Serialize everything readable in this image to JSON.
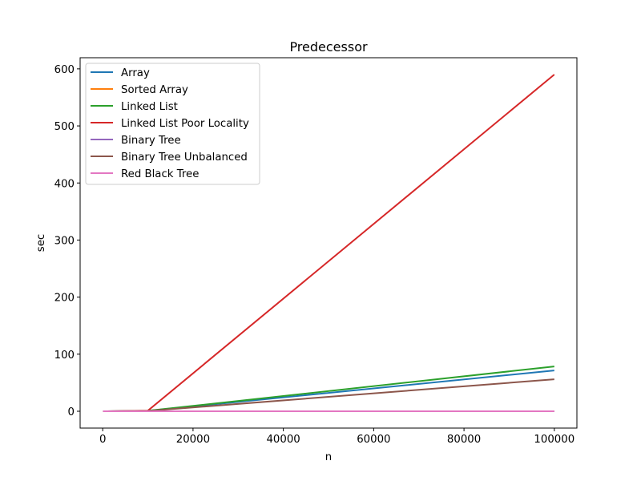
{
  "chart_data": {
    "type": "line",
    "title": "Predecessor",
    "xlabel": "n",
    "ylabel": "sec",
    "x": [
      100,
      1000,
      10000,
      100000
    ],
    "xlim": [
      -5000,
      105000
    ],
    "ylim": [
      -29.5,
      619.5
    ],
    "xticks": [
      0,
      20000,
      40000,
      60000,
      80000,
      100000
    ],
    "xtick_labels": [
      "0",
      "20000",
      "40000",
      "60000",
      "80000",
      "100000"
    ],
    "yticks": [
      0,
      100,
      200,
      300,
      400,
      500,
      600
    ],
    "ytick_labels": [
      "0",
      "100",
      "200",
      "300",
      "400",
      "500",
      "600"
    ],
    "grid": false,
    "legend_position": "upper left",
    "series": [
      {
        "name": "Array",
        "color": "#1f77b4",
        "values": [
          0.0,
          0.01,
          0.7,
          71.5
        ]
      },
      {
        "name": "Sorted Array",
        "color": "#ff7f0e",
        "values": [
          0.0,
          0.0,
          0.0,
          0.01
        ]
      },
      {
        "name": "Linked List",
        "color": "#2ca02c",
        "values": [
          0.0,
          0.01,
          0.8,
          78.5
        ]
      },
      {
        "name": "Linked List Poor Locality",
        "color": "#d62728",
        "values": [
          0.0,
          0.01,
          1.0,
          590.0
        ]
      },
      {
        "name": "Binary Tree",
        "color": "#9467bd",
        "values": [
          0.0,
          0.0,
          0.0,
          0.02
        ]
      },
      {
        "name": "Binary Tree Unbalanced",
        "color": "#8c564b",
        "values": [
          0.0,
          0.01,
          0.55,
          56.0
        ]
      },
      {
        "name": "Red Black Tree",
        "color": "#e377c2",
        "values": [
          0.0,
          0.0,
          0.0,
          0.02
        ]
      }
    ]
  }
}
